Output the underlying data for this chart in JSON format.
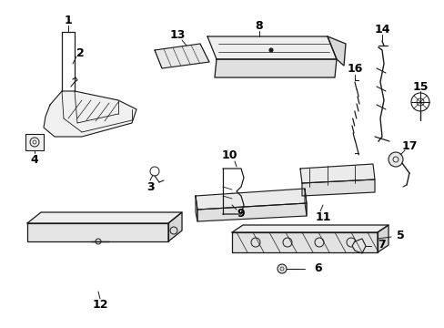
{
  "bg_color": "#ffffff",
  "fig_width": 4.89,
  "fig_height": 3.6,
  "dpi": 100,
  "line_color": "#1a1a1a",
  "label_fontsize": 9,
  "label_fontweight": "bold"
}
